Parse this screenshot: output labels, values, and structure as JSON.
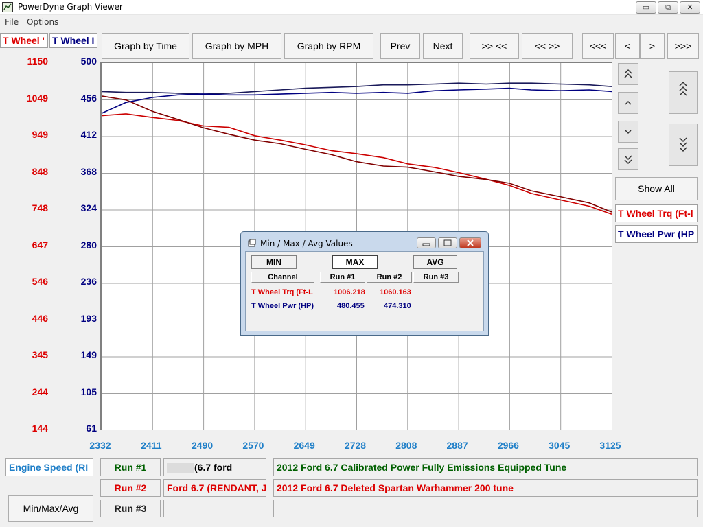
{
  "window": {
    "title": "PowerDyne Graph Viewer",
    "minimize": "▭",
    "maximize": "⧉",
    "close": "✕"
  },
  "menu": {
    "file": "File",
    "options": "Options"
  },
  "toolbar": {
    "tab1": "T Wheel '",
    "tab2": "T Wheel I",
    "graph_by_time": "Graph by Time",
    "graph_by_mph": "Graph by MPH",
    "graph_by_rpm": "Graph by RPM",
    "prev": "Prev",
    "next": "Next",
    "zoom_in": ">> <<",
    "zoom_out": "<< >>",
    "scroll_far_left": "<<<",
    "scroll_left": "<",
    "scroll_right": ">",
    "scroll_far_right": ">>>"
  },
  "y_axis_red": [
    "1150",
    "1049",
    "949",
    "848",
    "748",
    "647",
    "546",
    "446",
    "345",
    "244",
    "144"
  ],
  "y_axis_blue": [
    "500",
    "456",
    "412",
    "368",
    "324",
    "280",
    "236",
    "193",
    "149",
    "105",
    "61"
  ],
  "x_axis": [
    "2332",
    "2411",
    "2490",
    "2570",
    "2649",
    "2728",
    "2808",
    "2887",
    "2966",
    "3045",
    "3125"
  ],
  "colors": {
    "torque": "#cc0000",
    "torque_dark": "#800000",
    "power": "#000080",
    "power_dark": "#1a1a5a",
    "x_axis": "#1f7fc8"
  },
  "chart_data": {
    "type": "line",
    "xlabel": "Engine Speed (RI",
    "xlim": [
      2332,
      3125
    ],
    "y_left_lim": [
      144,
      1150
    ],
    "y_right_lim": [
      61,
      500
    ],
    "series": [
      {
        "name": "T Wheel Trq (Ft-L",
        "run": "Run #1",
        "axis": "left",
        "x": [
          2332,
          2370,
          2411,
          2450,
          2490,
          2530,
          2570,
          2610,
          2649,
          2690,
          2728,
          2770,
          2808,
          2850,
          2887,
          2930,
          2966,
          3000,
          3045,
          3090,
          3125
        ],
        "y": [
          1006,
          1011,
          1001,
          993,
          978,
          974,
          951,
          939,
          926,
          910,
          902,
          891,
          874,
          864,
          850,
          832,
          815,
          793,
          775,
          758,
          736
        ]
      },
      {
        "name": "T Wheel Trq (Ft-L",
        "run": "Run #2",
        "axis": "left",
        "x": [
          2332,
          2370,
          2411,
          2450,
          2490,
          2530,
          2570,
          2610,
          2649,
          2690,
          2728,
          2770,
          2808,
          2850,
          2887,
          2930,
          2966,
          3000,
          3045,
          3090,
          3125
        ],
        "y": [
          1060,
          1049,
          1018,
          996,
          973,
          955,
          939,
          929,
          914,
          899,
          880,
          868,
          865,
          852,
          840,
          831,
          821,
          800,
          784,
          767,
          742
        ]
      },
      {
        "name": "T Wheel Pwr (HP",
        "run": "Run #1",
        "axis": "right",
        "x": [
          2332,
          2370,
          2411,
          2450,
          2490,
          2530,
          2570,
          2610,
          2649,
          2690,
          2728,
          2770,
          2808,
          2850,
          2887,
          2930,
          2966,
          3000,
          3045,
          3090,
          3125
        ],
        "y": [
          466,
          465,
          465,
          464,
          463,
          464,
          466,
          468,
          470,
          471,
          472,
          474,
          474,
          475,
          476,
          475,
          476,
          476,
          475,
          474,
          472
        ]
      },
      {
        "name": "T Wheel Pwr (HP",
        "run": "Run #2",
        "axis": "right",
        "x": [
          2332,
          2370,
          2411,
          2450,
          2490,
          2530,
          2570,
          2610,
          2649,
          2690,
          2728,
          2770,
          2808,
          2850,
          2887,
          2930,
          2966,
          3000,
          3045,
          3090,
          3125
        ],
        "y": [
          440,
          453,
          459,
          462,
          463,
          462,
          462,
          463,
          464,
          465,
          464,
          465,
          464,
          467,
          468,
          469,
          470,
          468,
          467,
          468,
          466
        ]
      }
    ]
  },
  "sidebar": {
    "show_all": "Show All",
    "legend_torque": "T Wheel Trq (Ft-l",
    "legend_power": "T Wheel Pwr (HP"
  },
  "dialog": {
    "title": "Min / Max / Avg Values",
    "min": "MIN",
    "max": "MAX",
    "avg": "AVG",
    "col_channel": "Channel",
    "col_run1": "Run #1",
    "col_run2": "Run #2",
    "col_run3": "Run #3",
    "rows": [
      {
        "channel": "T Wheel Trq (Ft-L",
        "run1": "1006.218",
        "run2": "1060.163"
      },
      {
        "channel": "T Wheel Pwr (HP)",
        "run1": "480.455",
        "run2": "474.310"
      }
    ]
  },
  "bottom": {
    "engine_speed": "Engine Speed (RI",
    "run1_label": "Run #1",
    "run2_label": "Run #2",
    "run3_label": "Run #3",
    "run1_file": "(6.7       ford",
    "run2_file": "Ford 6.7 (RENDANT, J",
    "run3_file": "",
    "run1_desc": "2012 Ford 6.7 Calibrated Power Fully Emissions Equipped Tune",
    "run2_desc": "2012 Ford 6.7 Deleted Spartan Warhammer 200 tune",
    "run3_desc": "",
    "minmaxavg": "Min/Max/Avg"
  }
}
